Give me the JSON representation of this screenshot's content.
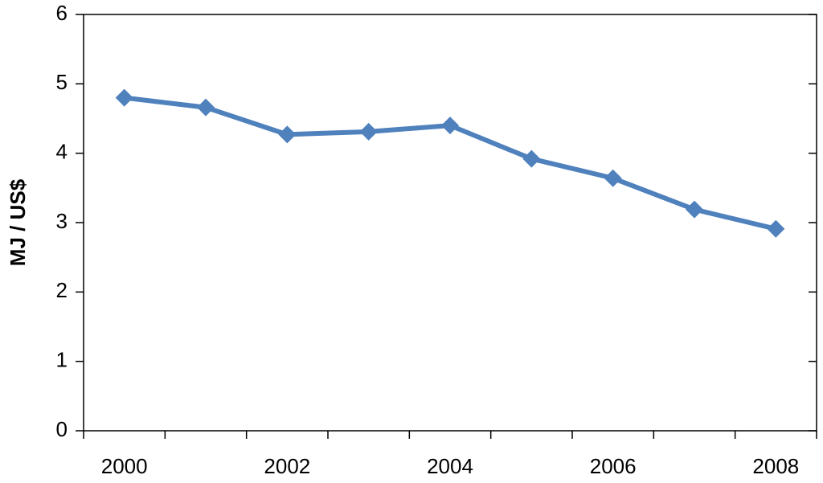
{
  "chart_data": {
    "type": "line",
    "y_label": "MJ / US$",
    "categories": [
      2000,
      null,
      2002,
      null,
      2004,
      null,
      2006,
      null,
      2008
    ],
    "series": [
      {
        "color": "#4f81bd",
        "values": [
          4.8,
          4.66,
          4.27,
          4.31,
          4.4,
          3.92,
          3.64,
          3.19,
          2.91
        ]
      }
    ],
    "ylim": [
      0,
      6
    ],
    "yticks": [
      0,
      1,
      2,
      3,
      4,
      5,
      6
    ],
    "grid": false
  }
}
